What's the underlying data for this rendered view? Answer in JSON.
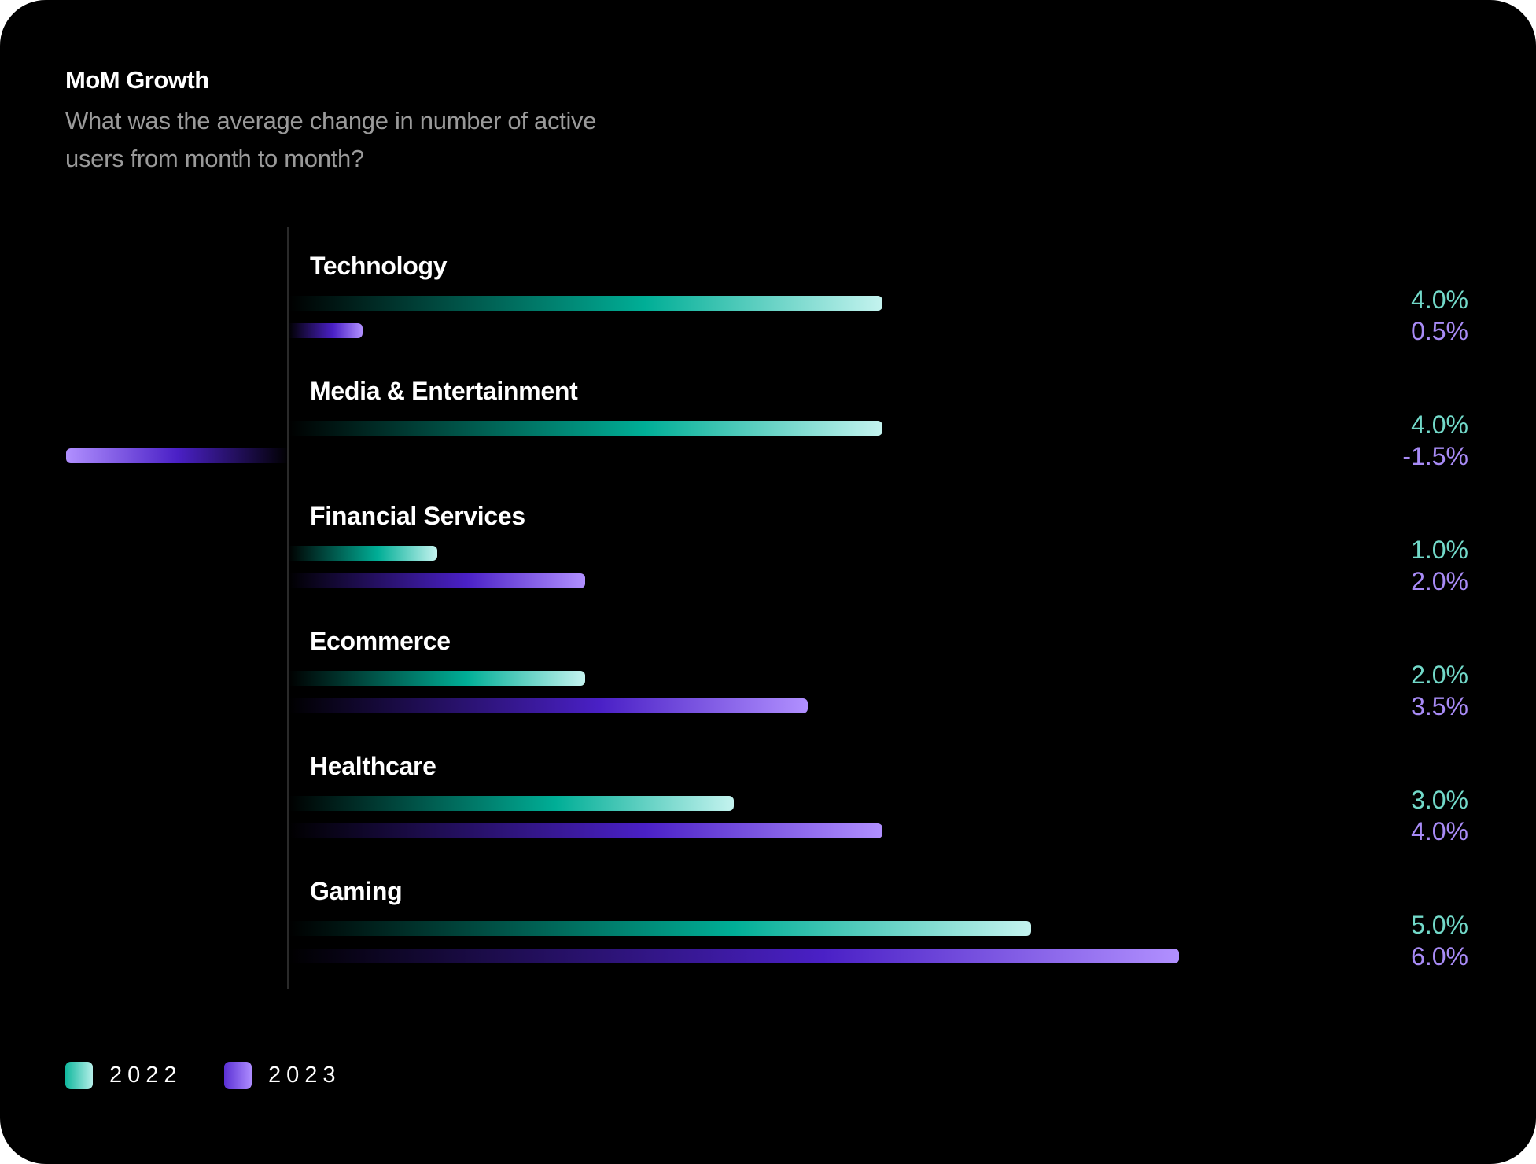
{
  "chart_data": {
    "type": "bar",
    "orientation": "horizontal",
    "title": "MoM Growth",
    "subtitle": "What was the average change in number of active users from month to month?",
    "categories": [
      "Technology",
      "Media & Entertainment",
      "Financial Services",
      "Ecommerce",
      "Healthcare",
      "Gaming"
    ],
    "series": [
      {
        "name": "2022",
        "values": [
          4.0,
          4.0,
          1.0,
          2.0,
          3.0,
          5.0
        ],
        "labels": [
          "4.0%",
          "4.0%",
          "1.0%",
          "2.0%",
          "3.0%",
          "5.0%"
        ],
        "color": "#1fbfa8",
        "label_color": "#72d9c9"
      },
      {
        "name": "2023",
        "values": [
          0.5,
          -1.5,
          2.0,
          3.5,
          4.0,
          6.0
        ],
        "labels": [
          "0.5%",
          "-1.5%",
          "2.0%",
          "3.5%",
          "4.0%",
          "6.0%"
        ],
        "color": "#7a4fe6",
        "label_color": "#a88bf6"
      }
    ],
    "unit": "%",
    "grid": false,
    "legend": "bottom-left"
  }
}
